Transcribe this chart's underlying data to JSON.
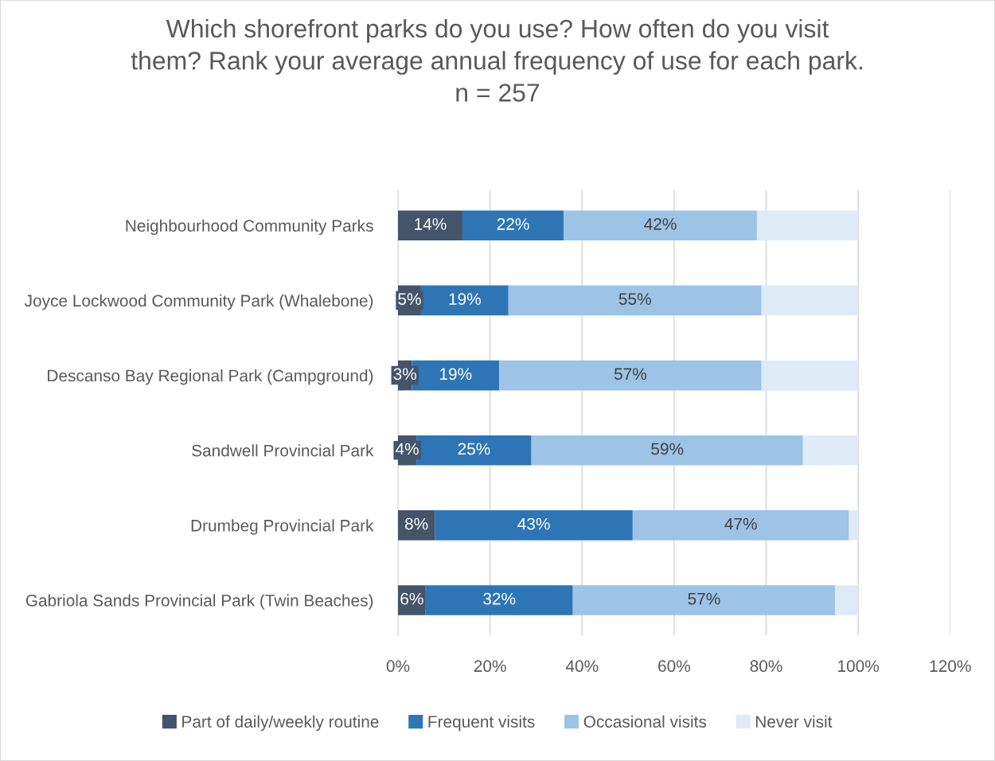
{
  "chart_data": {
    "type": "bar",
    "orientation": "horizontal",
    "stacked": true,
    "title": "Which shorefront parks do you use? How often do you visit\nthem? Rank your average annual frequency of use for each park.\nn = 257",
    "categories": [
      "Neighbourhood Community Parks",
      "Joyce Lockwood Community Park (Whalebone)",
      "Descanso Bay Regional Park (Campground)",
      "Sandwell Provincial Park",
      "Drumbeg Provincial Park",
      "Gabriola Sands Provincial Park (Twin Beaches)"
    ],
    "series": [
      {
        "name": "Part of daily/weekly routine",
        "color": "#44546a",
        "values": [
          14,
          5,
          3,
          4,
          8,
          6
        ],
        "value_labels": [
          "14%",
          "5%",
          "3%",
          "4%",
          "8%",
          "6%"
        ]
      },
      {
        "name": "Frequent visits",
        "color": "#2e75b6",
        "values": [
          22,
          19,
          19,
          25,
          43,
          32
        ],
        "value_labels": [
          "22%",
          "19%",
          "19%",
          "25%",
          "43%",
          "32%"
        ]
      },
      {
        "name": "Occasional visits",
        "color": "#9dc3e6",
        "values": [
          42,
          55,
          57,
          59,
          47,
          57
        ],
        "value_labels": [
          "42%",
          "55%",
          "57%",
          "59%",
          "47%",
          "57%"
        ]
      },
      {
        "name": "Never visit",
        "color": "#deebf7",
        "values": [
          22,
          21,
          21,
          12,
          2,
          5
        ],
        "value_labels": [
          null,
          null,
          null,
          null,
          null,
          null
        ]
      }
    ],
    "xlim": [
      0,
      120
    ],
    "xticks": [
      {
        "value": 0,
        "label": "0%"
      },
      {
        "value": 20,
        "label": "20%"
      },
      {
        "value": 40,
        "label": "40%"
      },
      {
        "value": 60,
        "label": "60%"
      },
      {
        "value": 80,
        "label": "80%"
      },
      {
        "value": 100,
        "label": "100%"
      },
      {
        "value": 120,
        "label": "120%"
      }
    ],
    "grid": "x",
    "legend": "bottom"
  }
}
